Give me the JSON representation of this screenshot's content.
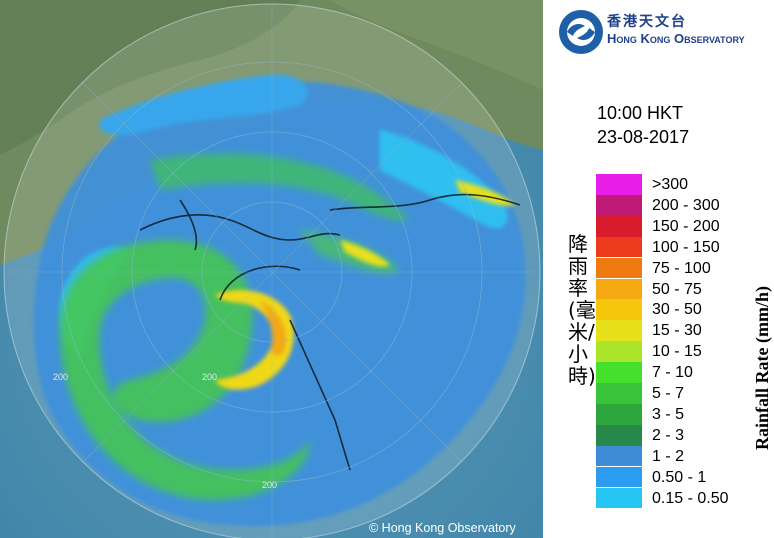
{
  "header": {
    "org_name_zh": "香港天文台",
    "org_name_en": "Hong Kong Observatory"
  },
  "timestamp": {
    "time": "10:00 HKT",
    "date": "23-08-2017"
  },
  "legend": {
    "title_zh": "降雨率(毫米/小時)",
    "title_en": "Rainfall Rate (mm/h)",
    "items": [
      {
        "label": ">300",
        "color": "#e81ee8"
      },
      {
        "label": "200 - 300",
        "color": "#c01a78"
      },
      {
        "label": "150 - 200",
        "color": "#d81c2c"
      },
      {
        "label": "100 - 150",
        "color": "#ec3a1c"
      },
      {
        "label": "75 - 100",
        "color": "#ee7a12"
      },
      {
        "label": "50 - 75",
        "color": "#f4a812"
      },
      {
        "label": "30 - 50",
        "color": "#f6c60c"
      },
      {
        "label": "15 - 30",
        "color": "#e6e01a"
      },
      {
        "label": "10 - 15",
        "color": "#aae52a"
      },
      {
        "label": "7 - 10",
        "color": "#44e02c"
      },
      {
        "label": "5 - 7",
        "color": "#38c438"
      },
      {
        "label": "3 - 5",
        "color": "#2ca63c"
      },
      {
        "label": "2 - 3",
        "color": "#28884c"
      },
      {
        "label": "1 - 2",
        "color": "#3c8cd8"
      },
      {
        "label": "0.50 - 1",
        "color": "#2c9cf0"
      },
      {
        "label": "0.15 - 0.50",
        "color": "#26c6f2"
      }
    ]
  },
  "map": {
    "range_rings": [
      "200",
      "200",
      "200"
    ],
    "copyright": "© Hong Kong Observatory"
  }
}
